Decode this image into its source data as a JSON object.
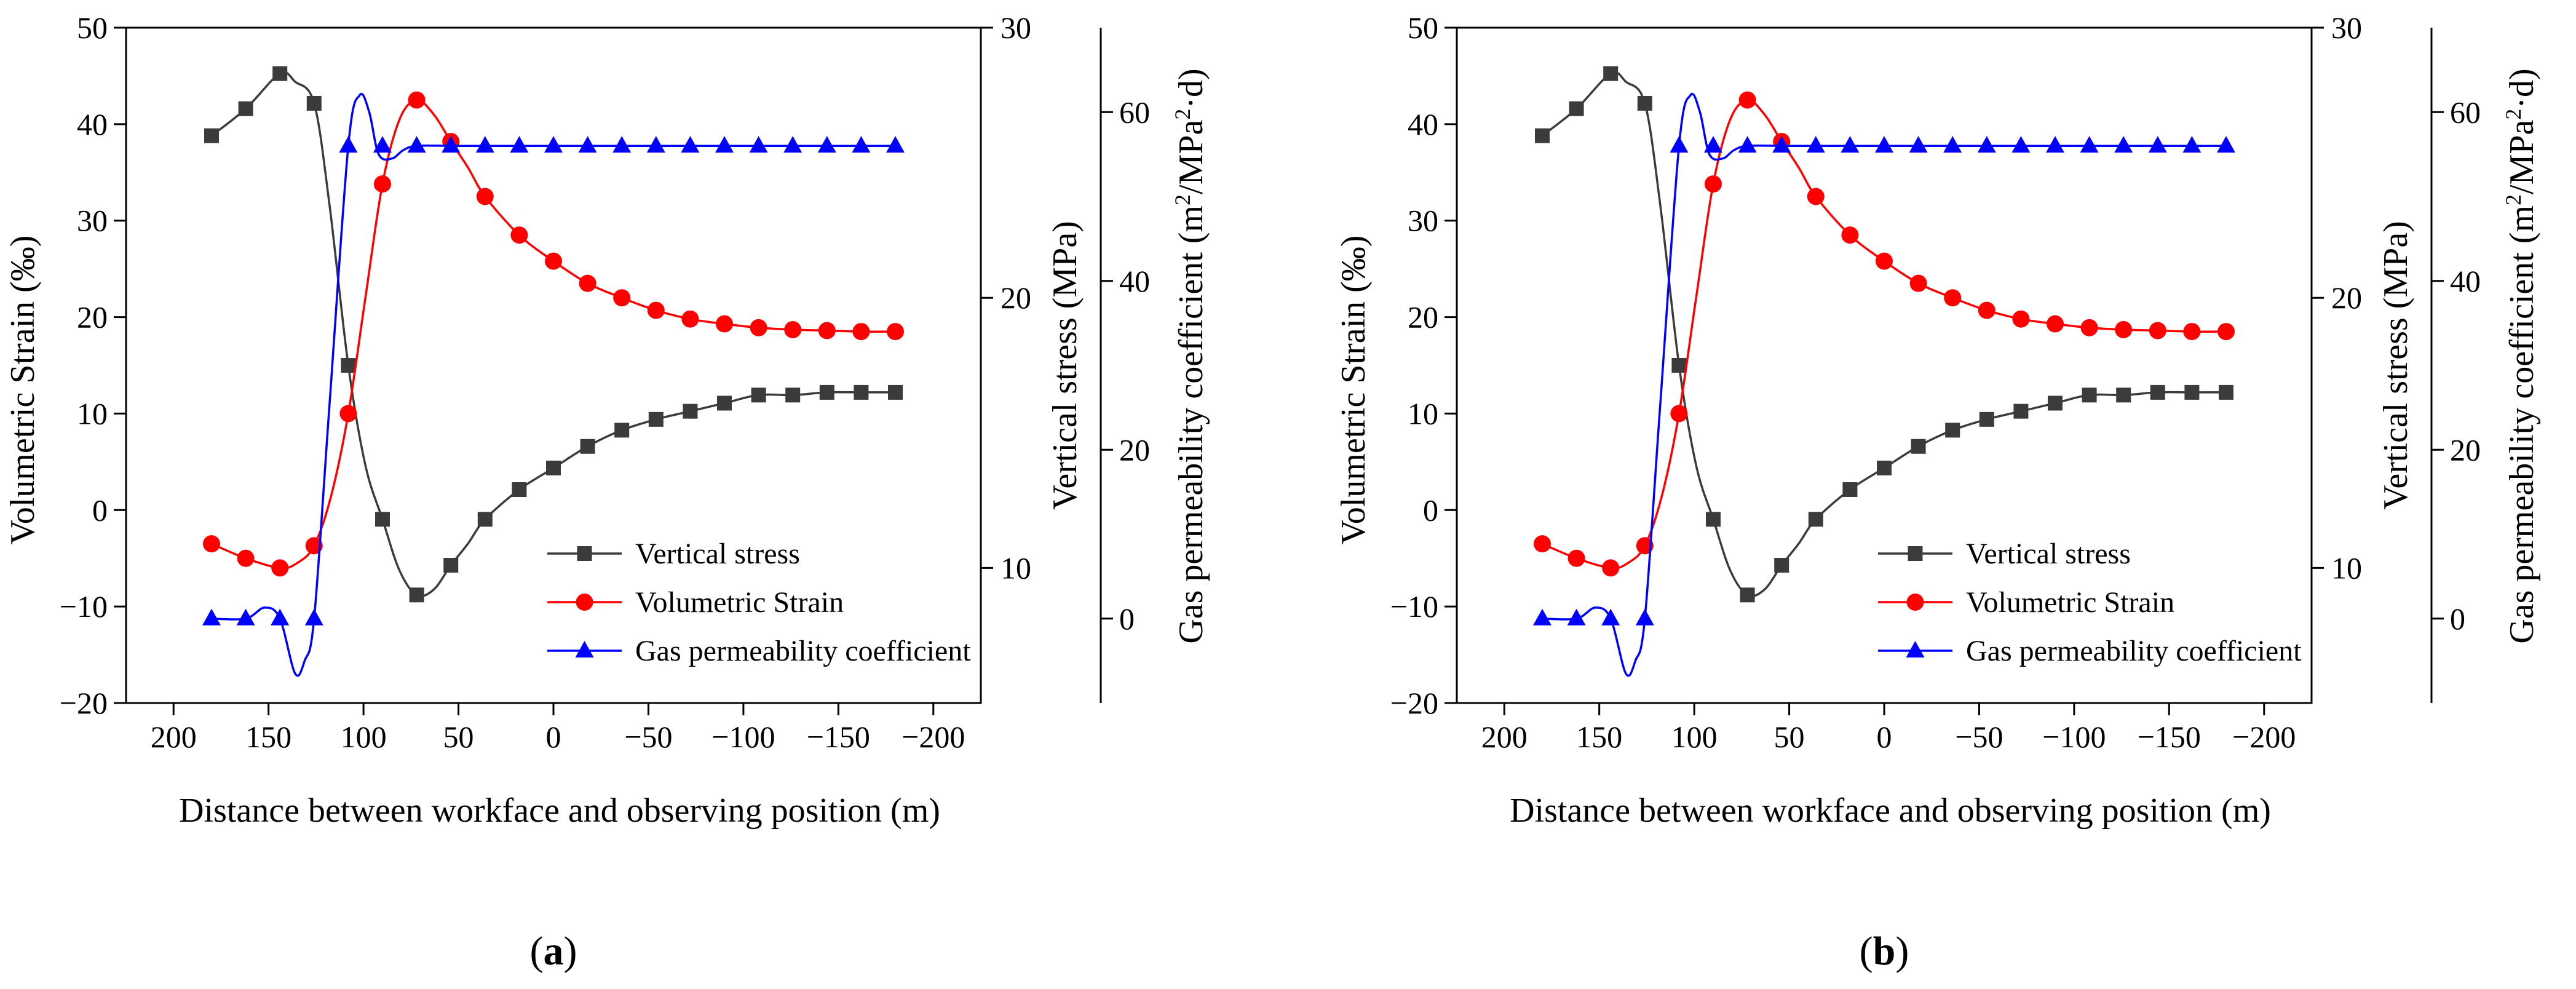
{
  "chart_data": [
    {
      "type": "line",
      "panel_label": "(a)",
      "panel_letter": "a",
      "xlabel": "Distance between workface and observing position (m)",
      "x_reversed": true,
      "xlim": [
        225,
        -225
      ],
      "xticks": [
        200,
        150,
        100,
        50,
        0,
        -50,
        -100,
        -150,
        -200
      ],
      "xtick_labels": [
        "200",
        "150",
        "100",
        "50",
        "0",
        "−50",
        "−100",
        "−150",
        "−200"
      ],
      "axes": {
        "left": {
          "label": "Volumetric Strain (‰)",
          "ylim": [
            -20,
            50
          ],
          "ticks": [
            -20,
            -10,
            0,
            10,
            20,
            30,
            40,
            50
          ],
          "tick_labels": [
            "−20",
            "−10",
            "0",
            "10",
            "20",
            "30",
            "40",
            "50"
          ]
        },
        "right1": {
          "label": "Vertical stress (MPa)",
          "ylim": [
            5,
            30
          ],
          "ticks": [
            10,
            20,
            30
          ],
          "tick_labels": [
            "10",
            "20",
            "30"
          ]
        },
        "right2": {
          "label_main": "Gas permeability coefficient (m",
          "label_sup1": "2",
          "label_mid": "/MPa",
          "label_sup2": "2",
          "label_end": "·d)",
          "ylim": [
            -10,
            70
          ],
          "ticks": [
            0,
            20,
            40,
            60
          ],
          "tick_labels": [
            "0",
            "20",
            "40",
            "60"
          ]
        }
      },
      "series": [
        {
          "name": "Vertical stress",
          "axis": "right1",
          "color": "#3b3b3b",
          "marker": "square",
          "x": [
            180,
            162,
            144,
            126,
            108,
            90,
            72,
            54,
            36,
            18,
            0,
            -18,
            -36,
            -54,
            -72,
            -90,
            -108,
            -126,
            -144,
            -162,
            -180
          ],
          "y": [
            26.0,
            27.0,
            28.3,
            27.2,
            17.5,
            11.8,
            9.0,
            10.1,
            11.8,
            12.9,
            13.7,
            14.5,
            15.1,
            15.5,
            15.8,
            16.1,
            16.4,
            16.4,
            16.5,
            16.5,
            16.5
          ],
          "smooth_x": [
            180,
            162,
            144,
            136,
            126,
            118,
            108,
            99,
            90,
            81,
            72,
            63,
            54,
            45,
            36,
            18,
            0,
            -18,
            -36,
            -54,
            -72,
            -90,
            -108,
            -126,
            -144,
            -162,
            -180
          ],
          "smooth_y": [
            26.0,
            27.0,
            28.3,
            28.0,
            27.2,
            23.5,
            17.5,
            13.8,
            11.8,
            9.9,
            9.0,
            9.2,
            10.1,
            10.9,
            11.8,
            12.9,
            13.7,
            14.5,
            15.1,
            15.5,
            15.8,
            16.1,
            16.4,
            16.4,
            16.5,
            16.5,
            16.5
          ]
        },
        {
          "name": "Volumetric Strain",
          "axis": "left",
          "color": "#ff0000",
          "marker": "circle",
          "x": [
            180,
            162,
            144,
            126,
            108,
            90,
            72,
            54,
            36,
            18,
            0,
            -18,
            -36,
            -54,
            -72,
            -90,
            -108,
            -126,
            -144,
            -162,
            -180
          ],
          "y": [
            -3.5,
            -5.0,
            -6.0,
            -3.7,
            10.0,
            33.8,
            42.5,
            38.2,
            32.5,
            28.5,
            25.8,
            23.5,
            22.0,
            20.7,
            19.8,
            19.3,
            18.9,
            18.7,
            18.6,
            18.5,
            18.5
          ],
          "smooth_x": [
            180,
            162,
            144,
            135,
            126,
            117,
            108,
            99,
            90,
            81,
            72,
            63,
            54,
            45,
            36,
            18,
            0,
            -18,
            -36,
            -54,
            -72,
            -90,
            -108,
            -126,
            -144,
            -162,
            -180
          ],
          "smooth_y": [
            -3.5,
            -5.0,
            -6.0,
            -5.5,
            -3.7,
            1.5,
            10.0,
            22.0,
            33.8,
            40.5,
            42.5,
            41.0,
            38.2,
            35.5,
            32.5,
            28.5,
            25.8,
            23.5,
            22.0,
            20.7,
            19.8,
            19.3,
            18.9,
            18.7,
            18.6,
            18.5,
            18.5
          ]
        },
        {
          "name": "Gas permeability coefficient",
          "axis": "right2",
          "color": "#0000ff",
          "marker": "triangle",
          "x": [
            180,
            162,
            144,
            126,
            108,
            90,
            72,
            54,
            36,
            18,
            0,
            -18,
            -36,
            -54,
            -72,
            -90,
            -108,
            -126,
            -144,
            -162,
            -180
          ],
          "y": [
            0,
            0,
            0,
            0,
            56,
            56,
            56,
            56,
            56,
            56,
            56,
            56,
            56,
            56,
            56,
            56,
            56,
            56,
            56,
            56,
            56
          ],
          "smooth_x": [
            180,
            162,
            152,
            144,
            136,
            131,
            126,
            118,
            108,
            102,
            97,
            92,
            85,
            79,
            72,
            54,
            36,
            18,
            0,
            -18,
            -36,
            -54,
            -72,
            -90,
            -108,
            -126,
            -144,
            -162,
            -180
          ],
          "smooth_y": [
            0,
            0,
            1.3,
            0,
            -6.5,
            -5.0,
            0,
            25,
            56,
            62,
            60,
            55,
            54.5,
            55.5,
            56,
            56,
            56,
            56,
            56,
            56,
            56,
            56,
            56,
            56,
            56,
            56,
            56,
            56,
            56
          ]
        }
      ]
    },
    {
      "type": "line",
      "panel_label": "(b)",
      "panel_letter": "b",
      "xlabel": "Distance between workface and observing position (m)",
      "x_reversed": true,
      "xlim": [
        225,
        -225
      ],
      "xticks": [
        200,
        150,
        100,
        50,
        0,
        -50,
        -100,
        -150,
        -200
      ],
      "xtick_labels": [
        "200",
        "150",
        "100",
        "50",
        "0",
        "−50",
        "−100",
        "−150",
        "−200"
      ],
      "axes": {
        "left": {
          "label": "Volumetric Strain (‰)",
          "ylim": [
            -20,
            50
          ],
          "ticks": [
            -20,
            -10,
            0,
            10,
            20,
            30,
            40,
            50
          ],
          "tick_labels": [
            "−20",
            "−10",
            "0",
            "10",
            "20",
            "30",
            "40",
            "50"
          ]
        },
        "right1": {
          "label": "Vertical stress (MPa)",
          "ylim": [
            5,
            30
          ],
          "ticks": [
            10,
            20,
            30
          ],
          "tick_labels": [
            "10",
            "20",
            "30"
          ]
        },
        "right2": {
          "label_main": "Gas permeability coefficient (m",
          "label_sup1": "2",
          "label_mid": "/MPa",
          "label_sup2": "2",
          "label_end": "·d)",
          "ylim": [
            -10,
            70
          ],
          "ticks": [
            0,
            20,
            40,
            60
          ],
          "tick_labels": [
            "0",
            "20",
            "40",
            "60"
          ]
        }
      },
      "series": [
        {
          "name": "Vertical stress",
          "axis": "right1",
          "color": "#3b3b3b",
          "marker": "square",
          "x": [
            180,
            162,
            144,
            126,
            108,
            90,
            72,
            54,
            36,
            18,
            0,
            -18,
            -36,
            -54,
            -72,
            -90,
            -108,
            -126,
            -144,
            -162,
            -180
          ],
          "y": [
            26.0,
            27.0,
            28.3,
            27.2,
            17.5,
            11.8,
            9.0,
            10.1,
            11.8,
            12.9,
            13.7,
            14.5,
            15.1,
            15.5,
            15.8,
            16.1,
            16.4,
            16.4,
            16.5,
            16.5,
            16.5
          ],
          "smooth_x": [
            180,
            162,
            144,
            136,
            126,
            118,
            108,
            99,
            90,
            81,
            72,
            63,
            54,
            45,
            36,
            18,
            0,
            -18,
            -36,
            -54,
            -72,
            -90,
            -108,
            -126,
            -144,
            -162,
            -180
          ],
          "smooth_y": [
            26.0,
            27.0,
            28.3,
            28.0,
            27.2,
            23.5,
            17.5,
            13.8,
            11.8,
            9.9,
            9.0,
            9.2,
            10.1,
            10.9,
            11.8,
            12.9,
            13.7,
            14.5,
            15.1,
            15.5,
            15.8,
            16.1,
            16.4,
            16.4,
            16.5,
            16.5,
            16.5
          ]
        },
        {
          "name": "Volumetric Strain",
          "axis": "left",
          "color": "#ff0000",
          "marker": "circle",
          "x": [
            180,
            162,
            144,
            126,
            108,
            90,
            72,
            54,
            36,
            18,
            0,
            -18,
            -36,
            -54,
            -72,
            -90,
            -108,
            -126,
            -144,
            -162,
            -180
          ],
          "y": [
            -3.5,
            -5.0,
            -6.0,
            -3.7,
            10.0,
            33.8,
            42.5,
            38.2,
            32.5,
            28.5,
            25.8,
            23.5,
            22.0,
            20.7,
            19.8,
            19.3,
            18.9,
            18.7,
            18.6,
            18.5,
            18.5
          ],
          "smooth_x": [
            180,
            162,
            144,
            135,
            126,
            117,
            108,
            99,
            90,
            81,
            72,
            63,
            54,
            45,
            36,
            18,
            0,
            -18,
            -36,
            -54,
            -72,
            -90,
            -108,
            -126,
            -144,
            -162,
            -180
          ],
          "smooth_y": [
            -3.5,
            -5.0,
            -6.0,
            -5.5,
            -3.7,
            1.5,
            10.0,
            22.0,
            33.8,
            40.5,
            42.5,
            41.0,
            38.2,
            35.5,
            32.5,
            28.5,
            25.8,
            23.5,
            22.0,
            20.7,
            19.8,
            19.3,
            18.9,
            18.7,
            18.6,
            18.5,
            18.5
          ]
        },
        {
          "name": "Gas permeability coefficient",
          "axis": "right2",
          "color": "#0000ff",
          "marker": "triangle",
          "x": [
            180,
            162,
            144,
            126,
            108,
            90,
            72,
            54,
            36,
            18,
            0,
            -18,
            -36,
            -54,
            -72,
            -90,
            -108,
            -126,
            -144,
            -162,
            -180
          ],
          "y": [
            0,
            0,
            0,
            0,
            56,
            56,
            56,
            56,
            56,
            56,
            56,
            56,
            56,
            56,
            56,
            56,
            56,
            56,
            56,
            56,
            56
          ],
          "smooth_x": [
            180,
            162,
            152,
            144,
            136,
            131,
            126,
            118,
            108,
            102,
            97,
            92,
            85,
            79,
            72,
            54,
            36,
            18,
            0,
            -18,
            -36,
            -54,
            -72,
            -90,
            -108,
            -126,
            -144,
            -162,
            -180
          ],
          "smooth_y": [
            0,
            0,
            1.3,
            0,
            -6.5,
            -5.0,
            0,
            25,
            56,
            62,
            60,
            55,
            54.5,
            55.5,
            56,
            56,
            56,
            56,
            56,
            56,
            56,
            56,
            56,
            56,
            56,
            56,
            56,
            56,
            56
          ]
        }
      ]
    }
  ]
}
